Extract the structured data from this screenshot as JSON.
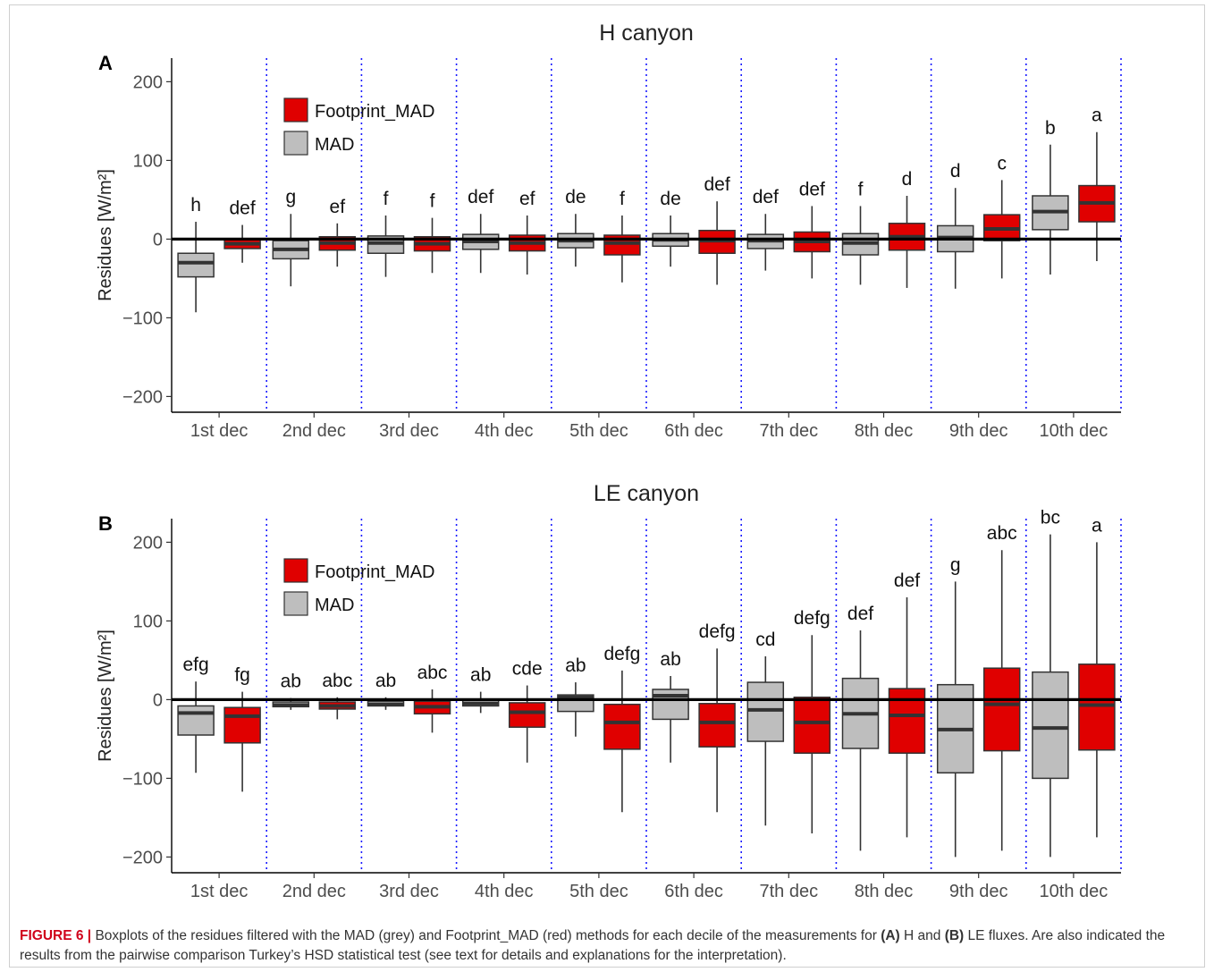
{
  "figure": {
    "caption": {
      "label": "FIGURE 6 |",
      "part1": " Boxplots of the residues filtered with the MAD (grey) and Footprint_MAD (red) methods for each decile of the measurements for ",
      "a_label": "(A)",
      "part2": " H and ",
      "b_label": "(B)",
      "part3": " LE fluxes. Are also indicated the results from the pairwise comparison Turkey’s HSD statistical test (see text for details and explanations for the interpretation)."
    }
  },
  "colors": {
    "mad": "#bebebe",
    "footprint_mad": "#e00000",
    "divider": "#1a1aff",
    "median": "#333333",
    "zero_line": "#000000"
  },
  "chart_data": [
    {
      "type": "box",
      "panel_label": "A",
      "title": "H canyon",
      "ylabel": "Residues [W/m²]",
      "ylim": [
        -220,
        230
      ],
      "yticks": [
        -200,
        -100,
        0,
        100,
        200
      ],
      "categories": [
        "1st dec",
        "2nd dec",
        "3rd dec",
        "4th dec",
        "5th dec",
        "6th dec",
        "7th dec",
        "8th dec",
        "9th dec",
        "10th dec"
      ],
      "legend": {
        "position": "top-left",
        "entries": [
          "Footprint_MAD",
          "MAD"
        ]
      },
      "reference_line": 0,
      "series": [
        {
          "name": "MAD",
          "color": "#bebebe",
          "boxes": [
            {
              "low": -93,
              "q1": -48,
              "median": -30,
              "q3": -18,
              "high": 22
            },
            {
              "low": -60,
              "q1": -25,
              "median": -13,
              "q3": -2,
              "high": 32
            },
            {
              "low": -48,
              "q1": -18,
              "median": -5,
              "q3": 4,
              "high": 30
            },
            {
              "low": -43,
              "q1": -13,
              "median": -3,
              "q3": 6,
              "high": 32
            },
            {
              "low": -35,
              "q1": -11,
              "median": -2,
              "q3": 7,
              "high": 32
            },
            {
              "low": -35,
              "q1": -9,
              "median": -1,
              "q3": 7,
              "high": 30
            },
            {
              "low": -40,
              "q1": -12,
              "median": -2,
              "q3": 6,
              "high": 32
            },
            {
              "low": -58,
              "q1": -20,
              "median": -5,
              "q3": 7,
              "high": 42
            },
            {
              "low": -63,
              "q1": -16,
              "median": 2,
              "q3": 17,
              "high": 65
            },
            {
              "low": -45,
              "q1": 12,
              "median": 35,
              "q3": 55,
              "high": 120
            }
          ],
          "letters": [
            "h",
            "g",
            "f",
            "def",
            "de",
            "de",
            "def",
            "f",
            "d",
            "b"
          ]
        },
        {
          "name": "Footprint_MAD",
          "color": "#e00000",
          "boxes": [
            {
              "low": -30,
              "q1": -12,
              "median": -6,
              "q3": 0,
              "high": 18
            },
            {
              "low": -35,
              "q1": -14,
              "median": -5,
              "q3": 3,
              "high": 20
            },
            {
              "low": -43,
              "q1": -15,
              "median": -6,
              "q3": 3,
              "high": 27
            },
            {
              "low": -45,
              "q1": -15,
              "median": -5,
              "q3": 5,
              "high": 30
            },
            {
              "low": -55,
              "q1": -20,
              "median": -5,
              "q3": 5,
              "high": 30
            },
            {
              "low": -58,
              "q1": -18,
              "median": -2,
              "q3": 11,
              "high": 48
            },
            {
              "low": -50,
              "q1": -16,
              "median": -3,
              "q3": 9,
              "high": 42
            },
            {
              "low": -62,
              "q1": -14,
              "median": 3,
              "q3": 20,
              "high": 55
            },
            {
              "low": -50,
              "q1": -2,
              "median": 13,
              "q3": 31,
              "high": 75
            },
            {
              "low": -28,
              "q1": 22,
              "median": 46,
              "q3": 68,
              "high": 136
            }
          ],
          "letters": [
            "def",
            "ef",
            "f",
            "ef",
            "f",
            "def",
            "def",
            "d",
            "c",
            "a"
          ]
        }
      ]
    },
    {
      "type": "box",
      "panel_label": "B",
      "title": "LE canyon",
      "ylabel": "Residues [W/m²]",
      "ylim": [
        -220,
        230
      ],
      "yticks": [
        -200,
        -100,
        0,
        100,
        200
      ],
      "categories": [
        "1st dec",
        "2nd dec",
        "3rd dec",
        "4th dec",
        "5th dec",
        "6th dec",
        "7th dec",
        "8th dec",
        "9th dec",
        "10th dec"
      ],
      "legend": {
        "position": "top-left",
        "entries": [
          "Footprint_MAD",
          "MAD"
        ]
      },
      "reference_line": 0,
      "series": [
        {
          "name": "MAD",
          "color": "#bebebe",
          "boxes": [
            {
              "low": -93,
              "q1": -45,
              "median": -17,
              "q3": -8,
              "high": 23
            },
            {
              "low": -13,
              "q1": -9,
              "median": -7,
              "q3": -3,
              "high": 2
            },
            {
              "low": -13,
              "q1": -8,
              "median": -6,
              "q3": -2,
              "high": 3
            },
            {
              "low": -17,
              "q1": -8,
              "median": -5,
              "q3": -1,
              "high": 10
            },
            {
              "low": -47,
              "q1": -15,
              "median": 3,
              "q3": 6,
              "high": 22
            },
            {
              "low": -80,
              "q1": -25,
              "median": 5,
              "q3": 13,
              "high": 30
            },
            {
              "low": -160,
              "q1": -53,
              "median": -13,
              "q3": 22,
              "high": 55
            },
            {
              "low": -192,
              "q1": -62,
              "median": -18,
              "q3": 27,
              "high": 88
            },
            {
              "low": -200,
              "q1": -93,
              "median": -38,
              "q3": 19,
              "high": 150
            },
            {
              "low": -200,
              "q1": -100,
              "median": -36,
              "q3": 35,
              "high": 210
            }
          ],
          "letters": [
            "efg",
            "ab",
            "ab",
            "ab",
            "ab",
            "ab",
            "cd",
            "def",
            "g",
            "bc"
          ]
        },
        {
          "name": "Footprint_MAD",
          "color": "#e00000",
          "boxes": [
            {
              "low": -117,
              "q1": -55,
              "median": -21,
              "q3": -10,
              "high": 10
            },
            {
              "low": -25,
              "q1": -12,
              "median": -8,
              "q3": -3,
              "high": 3
            },
            {
              "low": -42,
              "q1": -18,
              "median": -9,
              "q3": -2,
              "high": 13
            },
            {
              "low": -80,
              "q1": -35,
              "median": -16,
              "q3": -4,
              "high": 18
            },
            {
              "low": -143,
              "q1": -63,
              "median": -29,
              "q3": -6,
              "high": 37
            },
            {
              "low": -143,
              "q1": -60,
              "median": -29,
              "q3": -5,
              "high": 65
            },
            {
              "low": -170,
              "q1": -68,
              "median": -29,
              "q3": 3,
              "high": 82
            },
            {
              "low": -175,
              "q1": -68,
              "median": -20,
              "q3": 14,
              "high": 130
            },
            {
              "low": -192,
              "q1": -65,
              "median": -6,
              "q3": 40,
              "high": 190
            },
            {
              "low": -175,
              "q1": -64,
              "median": -7,
              "q3": 45,
              "high": 200
            }
          ],
          "letters": [
            "fg",
            "abc",
            "abc",
            "cde",
            "defg",
            "defg",
            "defg",
            "def",
            "abc",
            "a"
          ]
        }
      ]
    }
  ]
}
